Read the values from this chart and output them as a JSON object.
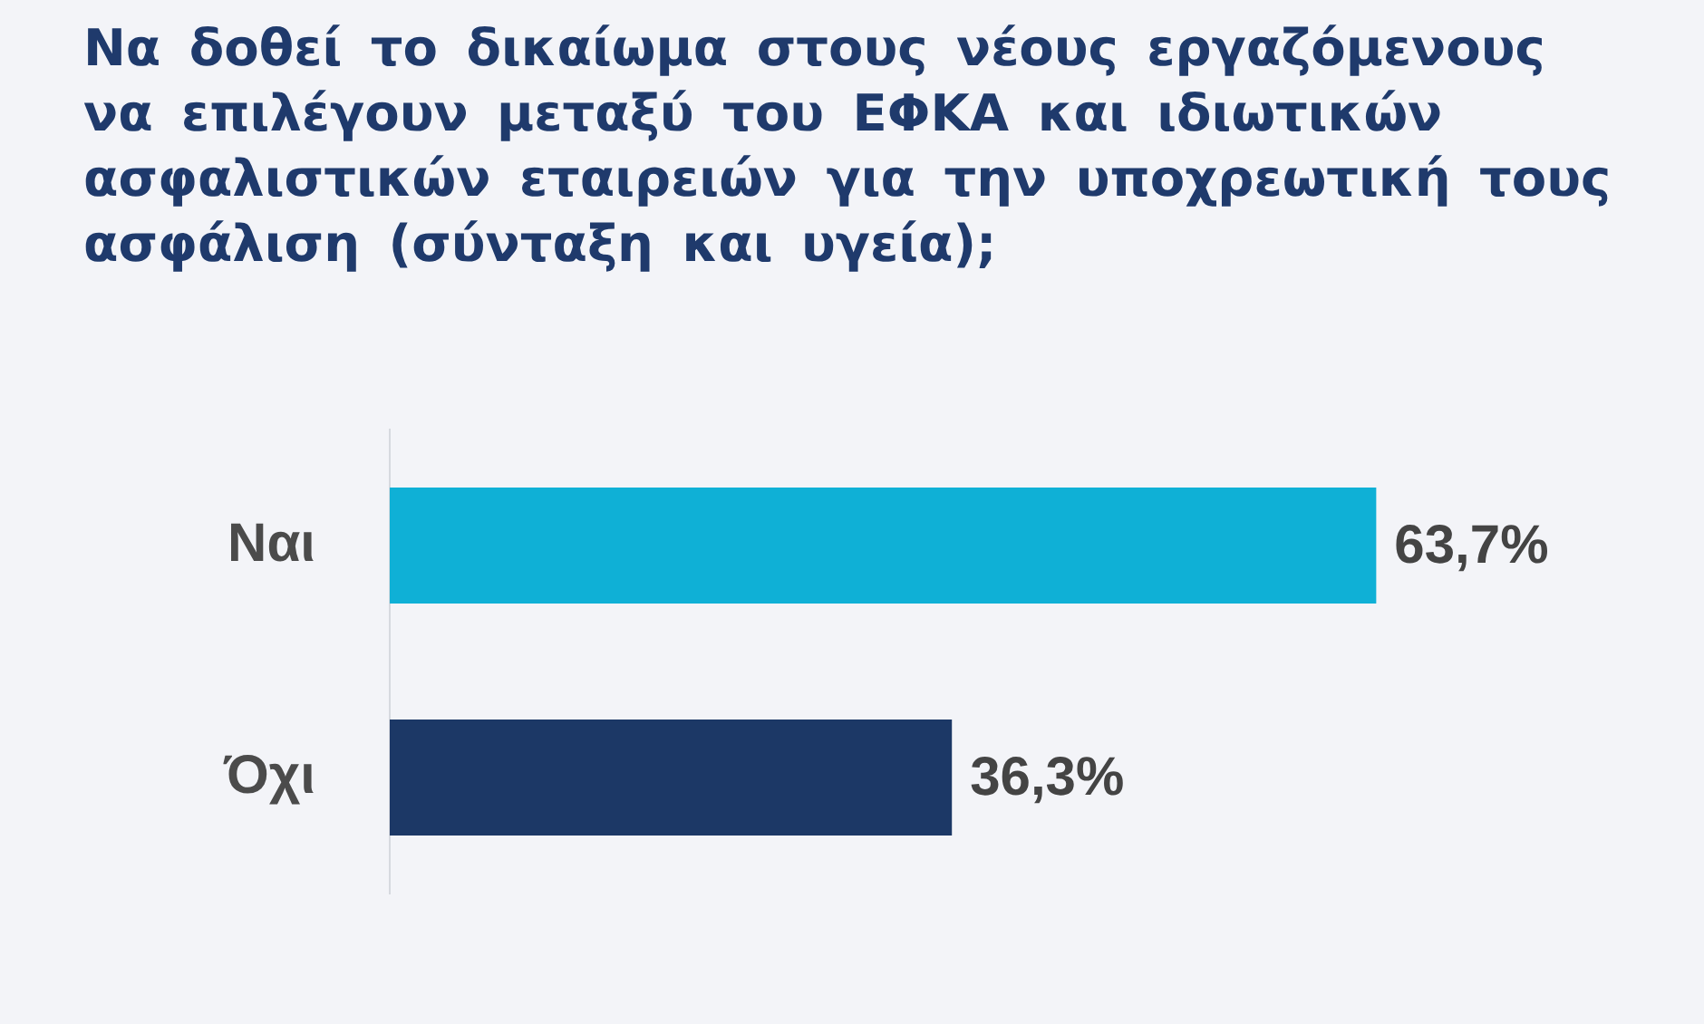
{
  "chart_data": {
    "type": "bar",
    "orientation": "horizontal",
    "title": "Να δοθεί το δικαίωμα στους νέους εργαζόμενους να επιλέγουν μεταξύ του ΕΦΚΑ και ιδιωτικών ασφαλιστικών εταιρειών για την υποχρεωτική τους ασφάλιση (σύνταξη και υγεία);",
    "categories": [
      "Ναι",
      "Όχι"
    ],
    "values": [
      63.7,
      36.3
    ],
    "colors": [
      "#0fb0d6",
      "#1c3866"
    ],
    "value_labels": [
      "63,7%",
      "36,3%"
    ],
    "grid": false,
    "legend": false
  }
}
